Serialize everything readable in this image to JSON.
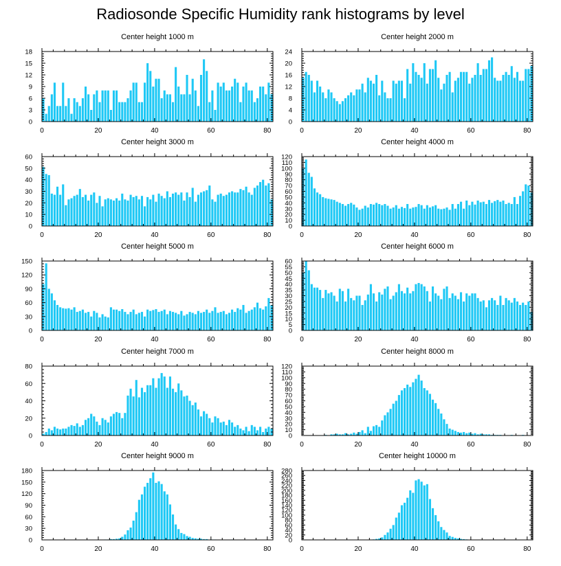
{
  "title": "Radiosonde Specific Humidity rank histograms by level",
  "bar_color": "#1ec8f5",
  "chart_data": [
    {
      "type": "bar",
      "title": "Center height 1000 m",
      "xlim": [
        0,
        82
      ],
      "ylim": [
        0,
        18
      ],
      "xticks": [
        0,
        20,
        40,
        60,
        80
      ],
      "yticks": [
        0,
        3,
        6,
        9,
        12,
        15,
        18
      ],
      "values": [
        6,
        2,
        4,
        7,
        10,
        4,
        4,
        10,
        4,
        6,
        2,
        6,
        5,
        4,
        6,
        9,
        7,
        3,
        7,
        8,
        5,
        8,
        8,
        8,
        3,
        8,
        8,
        5,
        5,
        5,
        6,
        8,
        10,
        10,
        5,
        5,
        10,
        15,
        13,
        9,
        11,
        11,
        6,
        8,
        7,
        7,
        5,
        14,
        9,
        7,
        7,
        12,
        7,
        11,
        8,
        4,
        12,
        16,
        13,
        5,
        8,
        3,
        10,
        9,
        10,
        8,
        8,
        9,
        11,
        10,
        5,
        9,
        10,
        8,
        8,
        5,
        6,
        9,
        9,
        7,
        10,
        7
      ]
    },
    {
      "type": "bar",
      "title": "Center height 2000 m",
      "xlim": [
        0,
        82
      ],
      "ylim": [
        0,
        24
      ],
      "xticks": [
        0,
        20,
        40,
        60,
        80
      ],
      "yticks": [
        0,
        4,
        8,
        12,
        16,
        20,
        24
      ],
      "values": [
        15,
        17,
        16,
        14,
        10,
        14,
        12,
        10,
        8,
        11,
        10,
        8,
        7,
        6,
        7,
        8,
        9,
        10,
        9,
        11,
        11,
        13,
        10,
        15,
        14,
        13,
        16,
        9,
        14,
        10,
        8,
        8,
        14,
        13,
        14,
        14,
        8,
        18,
        13,
        20,
        17,
        16,
        15,
        20,
        13,
        18,
        18,
        21,
        15,
        11,
        13,
        16,
        17,
        10,
        14,
        15,
        17,
        17,
        17,
        13,
        15,
        16,
        20,
        16,
        18,
        18,
        21,
        22,
        15,
        14,
        14,
        16,
        17,
        16,
        19,
        15,
        17,
        14,
        14,
        18,
        18,
        19
      ]
    },
    {
      "type": "bar",
      "title": "Center height 3000 m",
      "xlim": [
        0,
        82
      ],
      "ylim": [
        0,
        60
      ],
      "xticks": [
        0,
        20,
        40,
        60,
        80
      ],
      "yticks": [
        0,
        10,
        20,
        30,
        40,
        50,
        60
      ],
      "values": [
        51,
        45,
        44,
        28,
        27,
        34,
        27,
        36,
        18,
        23,
        24,
        26,
        27,
        32,
        25,
        27,
        22,
        27,
        29,
        20,
        26,
        17,
        23,
        24,
        23,
        22,
        24,
        22,
        28,
        23,
        22,
        27,
        25,
        26,
        23,
        26,
        17,
        25,
        23,
        27,
        21,
        28,
        26,
        24,
        30,
        25,
        28,
        29,
        27,
        29,
        22,
        29,
        25,
        33,
        21,
        27,
        29,
        30,
        31,
        35,
        23,
        21,
        27,
        28,
        26,
        27,
        29,
        30,
        29,
        29,
        32,
        31,
        34,
        29,
        27,
        33,
        35,
        38,
        40,
        35,
        37,
        23
      ]
    },
    {
      "type": "bar",
      "title": "Center height 4000 m",
      "xlim": [
        0,
        82
      ],
      "ylim": [
        0,
        120
      ],
      "xticks": [
        0,
        20,
        40,
        60,
        80
      ],
      "yticks": [
        0,
        10,
        20,
        30,
        40,
        50,
        60,
        70,
        80,
        90,
        100,
        110,
        120
      ],
      "values": [
        100,
        115,
        92,
        85,
        65,
        58,
        55,
        50,
        48,
        47,
        46,
        45,
        42,
        40,
        38,
        35,
        38,
        40,
        37,
        32,
        28,
        30,
        35,
        32,
        38,
        37,
        40,
        38,
        36,
        38,
        35,
        30,
        32,
        36,
        30,
        33,
        31,
        38,
        30,
        32,
        33,
        38,
        36,
        30,
        36,
        32,
        34,
        36,
        30,
        29,
        30,
        32,
        28,
        38,
        30,
        38,
        42,
        30,
        44,
        36,
        42,
        37,
        44,
        41,
        42,
        38,
        45,
        40,
        43,
        45,
        42,
        44,
        38,
        40,
        38,
        50,
        38,
        52,
        60,
        72,
        70,
        58
      ]
    },
    {
      "type": "bar",
      "title": "Center height 5000 m",
      "xlim": [
        0,
        82
      ],
      "ylim": [
        0,
        150
      ],
      "xticks": [
        0,
        20,
        40,
        60,
        80
      ],
      "yticks": [
        0,
        30,
        60,
        90,
        120,
        150
      ],
      "values": [
        100,
        145,
        90,
        80,
        65,
        55,
        50,
        48,
        47,
        48,
        45,
        50,
        40,
        42,
        45,
        38,
        40,
        30,
        42,
        38,
        28,
        35,
        30,
        28,
        50,
        45,
        45,
        42,
        46,
        40,
        35,
        40,
        45,
        35,
        38,
        40,
        30,
        45,
        42,
        44,
        46,
        40,
        42,
        45,
        35,
        42,
        40,
        38,
        35,
        42,
        32,
        35,
        40,
        38,
        35,
        42,
        38,
        40,
        45,
        38,
        42,
        50,
        38,
        40,
        42,
        35,
        38,
        45,
        40,
        48,
        45,
        55,
        38,
        42,
        45,
        50,
        60,
        48,
        45,
        52,
        70,
        55
      ]
    },
    {
      "type": "bar",
      "title": "Center height 6000 m",
      "xlim": [
        0,
        82
      ],
      "ylim": [
        0,
        60
      ],
      "xticks": [
        0,
        20,
        40,
        60,
        80
      ],
      "yticks": [
        0,
        5,
        10,
        15,
        20,
        25,
        30,
        35,
        40,
        45,
        50,
        55,
        60
      ],
      "values": [
        50,
        60,
        52,
        40,
        37,
        37,
        35,
        28,
        35,
        32,
        33,
        30,
        25,
        36,
        34,
        25,
        36,
        28,
        26,
        30,
        30,
        22,
        26,
        31,
        40,
        32,
        25,
        33,
        31,
        36,
        38,
        27,
        30,
        33,
        40,
        34,
        32,
        37,
        32,
        34,
        40,
        41,
        40,
        38,
        34,
        25,
        38,
        32,
        30,
        27,
        36,
        38,
        28,
        32,
        30,
        27,
        33,
        25,
        32,
        30,
        32,
        32,
        28,
        25,
        26,
        20,
        26,
        28,
        26,
        22,
        30,
        22,
        28,
        26,
        24,
        28,
        25,
        22,
        24,
        22,
        25,
        16
      ]
    },
    {
      "type": "bar",
      "title": "Center height 7000 m",
      "xlim": [
        0,
        82
      ],
      "ylim": [
        0,
        80
      ],
      "xticks": [
        0,
        20,
        40,
        60,
        80
      ],
      "yticks": [
        0,
        20,
        40,
        60,
        80
      ],
      "values": [
        2,
        4,
        8,
        6,
        10,
        8,
        7,
        8,
        8,
        10,
        12,
        11,
        14,
        10,
        12,
        18,
        20,
        25,
        22,
        16,
        12,
        20,
        18,
        15,
        22,
        25,
        27,
        26,
        20,
        26,
        46,
        54,
        45,
        64,
        44,
        55,
        50,
        58,
        58,
        66,
        55,
        66,
        72,
        68,
        55,
        68,
        54,
        50,
        60,
        52,
        45,
        46,
        40,
        35,
        38,
        30,
        22,
        28,
        25,
        20,
        15,
        22,
        20,
        15,
        16,
        12,
        18,
        15,
        10,
        12,
        8,
        6,
        10,
        5,
        12,
        10,
        6,
        10,
        4,
        8,
        10,
        8
      ]
    },
    {
      "type": "bar",
      "title": "Center height 8000 m",
      "xlim": [
        0,
        82
      ],
      "ylim": [
        0,
        120
      ],
      "xticks": [
        0,
        20,
        40,
        60,
        80
      ],
      "yticks": [
        0,
        10,
        20,
        30,
        40,
        50,
        60,
        70,
        80,
        90,
        100,
        110,
        120
      ],
      "values": [
        0,
        0,
        0,
        0,
        0,
        0,
        0,
        0,
        1,
        0,
        2,
        2,
        3,
        2,
        2,
        4,
        2,
        3,
        5,
        3,
        6,
        9,
        4,
        15,
        8,
        16,
        18,
        15,
        26,
        35,
        40,
        46,
        55,
        60,
        70,
        78,
        82,
        88,
        84,
        92,
        98,
        105,
        95,
        82,
        78,
        72,
        62,
        56,
        46,
        38,
        28,
        20,
        12,
        10,
        8,
        6,
        5,
        6,
        4,
        5,
        3,
        4,
        2,
        3,
        2,
        2,
        2,
        1,
        1,
        1,
        1,
        0,
        0,
        0,
        1,
        0,
        0,
        0,
        1,
        0,
        0,
        0
      ]
    },
    {
      "type": "bar",
      "title": "Center height 9000 m",
      "xlim": [
        0,
        82
      ],
      "ylim": [
        0,
        180
      ],
      "xticks": [
        0,
        20,
        40,
        60,
        80
      ],
      "yticks": [
        0,
        30,
        60,
        90,
        120,
        150,
        180
      ],
      "values": [
        0,
        0,
        0,
        0,
        0,
        0,
        0,
        0,
        0,
        0,
        0,
        0,
        0,
        0,
        0,
        0,
        0,
        0,
        0,
        0,
        0,
        0,
        1,
        1,
        2,
        2,
        3,
        4,
        8,
        14,
        25,
        32,
        50,
        72,
        104,
        118,
        138,
        148,
        160,
        175,
        148,
        152,
        145,
        126,
        118,
        92,
        66,
        40,
        28,
        18,
        15,
        10,
        8,
        5,
        4,
        3,
        3,
        2,
        2,
        1,
        1,
        1,
        0,
        0,
        0,
        0,
        0,
        1,
        0,
        0,
        0,
        0,
        0,
        0,
        0,
        0,
        0,
        0,
        0,
        0,
        0,
        0
      ]
    },
    {
      "type": "bar",
      "title": "Center height 10000 m",
      "xlim": [
        0,
        82
      ],
      "ylim": [
        0,
        280
      ],
      "xticks": [
        0,
        20,
        40,
        60,
        80
      ],
      "yticks": [
        0,
        20,
        40,
        60,
        80,
        100,
        120,
        140,
        160,
        180,
        200,
        220,
        240,
        260,
        280
      ],
      "values": [
        0,
        0,
        0,
        0,
        0,
        0,
        0,
        0,
        0,
        0,
        0,
        0,
        0,
        0,
        0,
        0,
        0,
        0,
        0,
        0,
        0,
        0,
        0,
        0,
        1,
        2,
        4,
        6,
        10,
        20,
        30,
        45,
        60,
        90,
        110,
        140,
        150,
        170,
        200,
        190,
        240,
        245,
        235,
        220,
        225,
        165,
        128,
        100,
        75,
        52,
        40,
        30,
        16,
        12,
        8,
        6,
        4,
        3,
        2,
        1,
        1,
        1,
        0,
        0,
        0,
        0,
        0,
        0,
        0,
        0,
        0,
        0,
        0,
        0,
        0,
        0,
        0,
        0,
        0,
        0,
        0,
        0
      ]
    }
  ]
}
